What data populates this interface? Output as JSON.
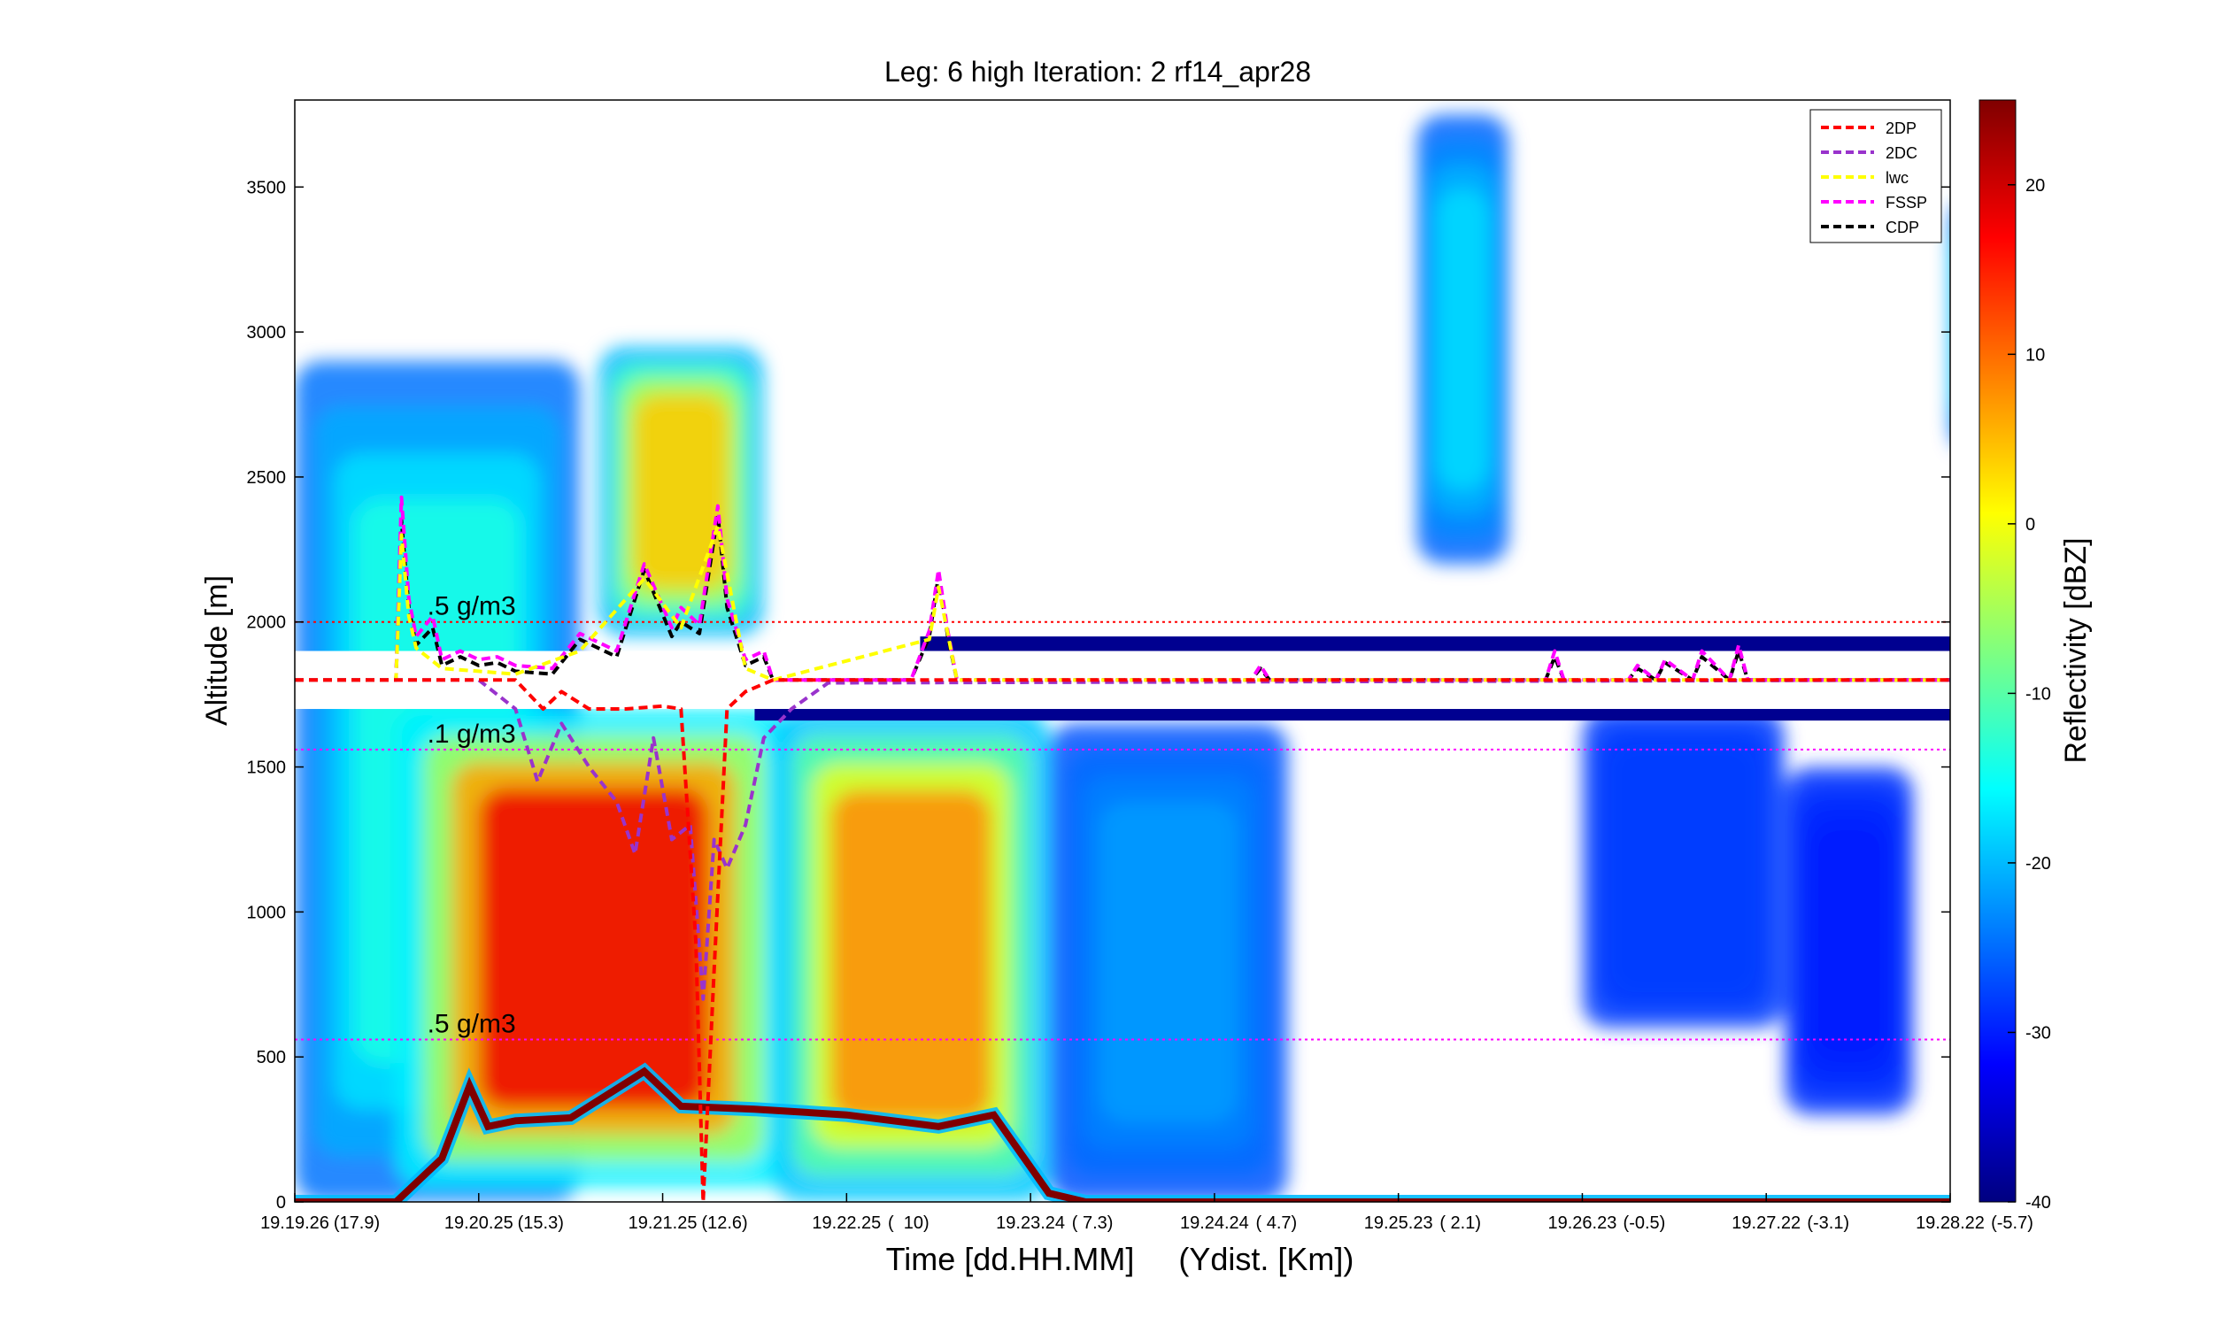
{
  "chart_data": {
    "type": "heatmap",
    "title": "Leg: 6 high Iteration: 2  rf14_apr28",
    "xlabel": "Time [dd.HH.MM]     (Ydist. [Km])",
    "ylabel": "Altitude [m]",
    "ylim": [
      0,
      3800
    ],
    "yticks": [
      0,
      500,
      1000,
      1500,
      2000,
      2500,
      3000,
      3500
    ],
    "xticks": [
      {
        "time": "19.19.26",
        "ydist": "(17.9)"
      },
      {
        "time": "19.20.25",
        "ydist": "(15.3)"
      },
      {
        "time": "19.21.25",
        "ydist": "(12.6)"
      },
      {
        "time": "19.22.25",
        "ydist": "(  10)"
      },
      {
        "time": "19.23.24",
        "ydist": "( 7.3)"
      },
      {
        "time": "19.24.24",
        "ydist": "( 4.7)"
      },
      {
        "time": "19.25.23",
        "ydist": "( 2.1)"
      },
      {
        "time": "19.26.23",
        "ydist": "(-0.5)"
      },
      {
        "time": "19.27.22",
        "ydist": "(-3.1)"
      },
      {
        "time": "19.28.22",
        "ydist": "(-5.7)"
      }
    ],
    "colorbar": {
      "label": "Reflectivity [dBZ]",
      "range": [
        -40,
        25
      ],
      "ticks": [
        -40,
        -30,
        -20,
        -10,
        0,
        10,
        20
      ]
    },
    "legend": {
      "placement": "top-right",
      "entries": [
        {
          "name": "2DP",
          "color": "#ff0000"
        },
        {
          "name": "2DC",
          "color": "#9933cc"
        },
        {
          "name": "lwc",
          "color": "#ffff00"
        },
        {
          "name": "FSSP",
          "color": "#ff00ff"
        },
        {
          "name": "CDP",
          "color": "#000000"
        }
      ]
    },
    "annotations": [
      {
        "text": ".5 g/m3",
        "altitude": 2000
      },
      {
        "text": ".1 g/m3",
        "altitude": 1560
      },
      {
        "text": ".5 g/m3",
        "altitude": 560
      }
    ],
    "reference_lines": [
      {
        "altitude": 2000,
        "color": "#ff0000"
      },
      {
        "altitude": 1560,
        "color": "#ff00ff"
      },
      {
        "altitude": 560,
        "color": "#ff00ff"
      }
    ],
    "flight_altitude": 1800,
    "cloud_regions": [
      {
        "x0": 0.0,
        "x1": 1.55,
        "base": 0,
        "top": 2900,
        "peak": -14
      },
      {
        "x0": 0.55,
        "x1": 2.7,
        "base": 50,
        "top": 1700,
        "peak": 18
      },
      {
        "x0": 1.65,
        "x1": 2.55,
        "base": 1950,
        "top": 2950,
        "peak": 4
      },
      {
        "x0": 2.6,
        "x1": 4.1,
        "base": 0,
        "top": 1700,
        "peak": 8
      },
      {
        "x0": 4.1,
        "x1": 5.4,
        "base": 0,
        "top": 1650,
        "peak": -22
      },
      {
        "x0": 6.1,
        "x1": 6.6,
        "base": 2200,
        "top": 3750,
        "peak": -18
      },
      {
        "x0": 7.0,
        "x1": 8.1,
        "base": 600,
        "top": 1700,
        "peak": -28
      },
      {
        "x0": 8.1,
        "x1": 8.8,
        "base": 300,
        "top": 1500,
        "peak": -30
      },
      {
        "x0": 9.0,
        "x1": 9.1,
        "base": 2600,
        "top": 3450,
        "peak": -18
      }
    ],
    "surface_echo": [
      {
        "x": 0.0,
        "alt": 0
      },
      {
        "x": 0.55,
        "alt": 0
      },
      {
        "x": 0.8,
        "alt": 150
      },
      {
        "x": 0.95,
        "alt": 400
      },
      {
        "x": 1.05,
        "alt": 260
      },
      {
        "x": 1.2,
        "alt": 280
      },
      {
        "x": 1.5,
        "alt": 290
      },
      {
        "x": 1.9,
        "alt": 450
      },
      {
        "x": 2.1,
        "alt": 330
      },
      {
        "x": 2.5,
        "alt": 320
      },
      {
        "x": 3.0,
        "alt": 300
      },
      {
        "x": 3.5,
        "alt": 260
      },
      {
        "x": 3.8,
        "alt": 300
      },
      {
        "x": 4.1,
        "alt": 30
      },
      {
        "x": 4.3,
        "alt": 0
      },
      {
        "x": 9.1,
        "alt": 0
      }
    ],
    "series": [
      {
        "name": "CDP",
        "color": "#000000",
        "x": [
          0,
          0.55,
          0.58,
          0.62,
          0.66,
          0.75,
          0.8,
          0.9,
          1.0,
          1.1,
          1.2,
          1.4,
          1.55,
          1.75,
          1.9,
          2.05,
          2.1,
          2.2,
          2.3,
          2.35,
          2.45,
          2.55,
          2.6,
          3.35,
          3.45,
          3.5,
          3.55,
          3.6,
          5.2,
          5.25,
          5.3,
          6.7,
          6.8,
          6.85,
          6.9,
          7.25,
          7.3,
          7.4,
          7.45,
          7.6,
          7.65,
          7.8,
          7.85,
          7.9,
          9.1
        ],
        "alt": [
          1800,
          1800,
          2350,
          2050,
          1920,
          1980,
          1850,
          1880,
          1850,
          1860,
          1830,
          1820,
          1940,
          1880,
          2180,
          1950,
          2000,
          1960,
          2370,
          2050,
          1850,
          1880,
          1800,
          1800,
          1950,
          2160,
          1950,
          1800,
          1800,
          1840,
          1800,
          1800,
          1800,
          1880,
          1800,
          1800,
          1840,
          1800,
          1860,
          1800,
          1880,
          1800,
          1900,
          1800,
          1800
        ]
      },
      {
        "name": "FSSP",
        "color": "#ff00ff",
        "x": [
          0,
          0.55,
          0.58,
          0.62,
          0.66,
          0.75,
          0.8,
          0.9,
          1.0,
          1.1,
          1.2,
          1.4,
          1.55,
          1.75,
          1.9,
          2.05,
          2.1,
          2.2,
          2.3,
          2.35,
          2.45,
          2.55,
          2.6,
          3.35,
          3.45,
          3.5,
          3.55,
          3.6,
          5.2,
          5.25,
          5.3,
          6.7,
          6.8,
          6.85,
          6.9,
          7.25,
          7.3,
          7.4,
          7.45,
          7.6,
          7.65,
          7.8,
          7.85,
          7.9,
          9.1
        ],
        "alt": [
          1800,
          1800,
          2430,
          2080,
          1950,
          2020,
          1870,
          1900,
          1870,
          1880,
          1850,
          1840,
          1960,
          1900,
          2200,
          1980,
          2050,
          1990,
          2400,
          2080,
          1870,
          1900,
          1800,
          1800,
          1970,
          2180,
          1970,
          1800,
          1800,
          1850,
          1800,
          1800,
          1800,
          1900,
          1800,
          1800,
          1850,
          1800,
          1870,
          1800,
          1900,
          1800,
          1920,
          1800,
          1800
        ]
      },
      {
        "name": "lwc",
        "color": "#ffff00",
        "x": [
          0,
          0.55,
          0.58,
          0.62,
          0.66,
          0.8,
          1.0,
          1.2,
          1.55,
          1.9,
          2.1,
          2.3,
          2.45,
          2.6,
          3.45,
          3.5,
          3.6,
          9.1
        ],
        "alt": [
          1800,
          1800,
          2300,
          2020,
          1910,
          1840,
          1830,
          1820,
          1900,
          2150,
          1980,
          2330,
          1840,
          1800,
          1940,
          2120,
          1800,
          1800
        ]
      },
      {
        "name": "2DC",
        "color": "#9933cc",
        "x": [
          0,
          0.6,
          1.0,
          1.2,
          1.32,
          1.45,
          1.6,
          1.75,
          1.85,
          1.95,
          2.05,
          2.15,
          2.22,
          2.28,
          2.35,
          2.45,
          2.55,
          2.7,
          2.9,
          9.1
        ],
        "alt": [
          1800,
          1800,
          1800,
          1700,
          1450,
          1650,
          1500,
          1380,
          1200,
          1600,
          1250,
          1300,
          700,
          1250,
          1150,
          1300,
          1600,
          1700,
          1790,
          1800
        ]
      },
      {
        "name": "2DP",
        "color": "#ff0000",
        "x": [
          0,
          1.2,
          1.35,
          1.45,
          1.6,
          1.8,
          2.0,
          2.1,
          2.18,
          2.22,
          2.28,
          2.35,
          2.45,
          2.6,
          2.75,
          9.1
        ],
        "alt": [
          1800,
          1800,
          1700,
          1760,
          1700,
          1700,
          1710,
          1700,
          900,
          0,
          800,
          1700,
          1760,
          1800,
          1800,
          1800
        ]
      }
    ]
  }
}
